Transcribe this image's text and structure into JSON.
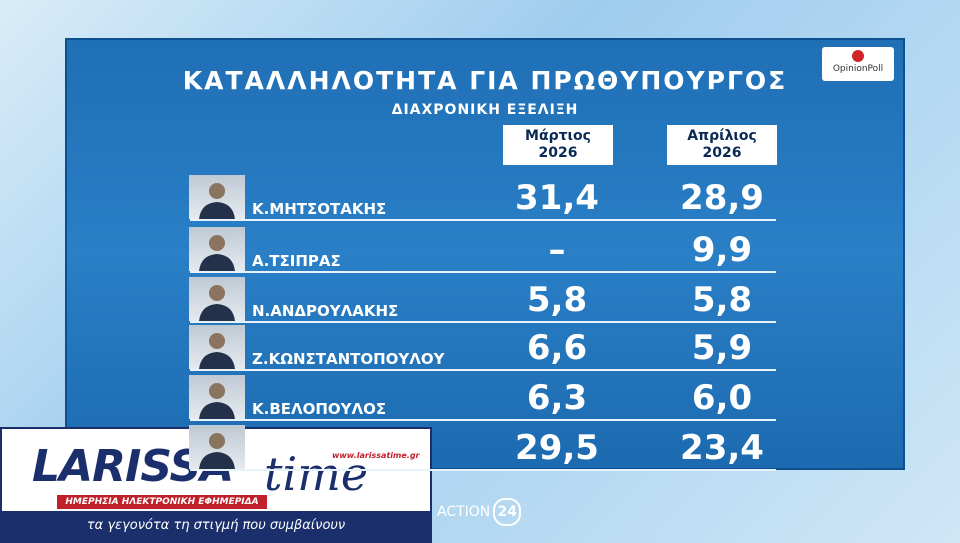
{
  "header": {
    "title": "ΚΑΤΑΛΛΗΛΟΤΗΤΑ ΓΙΑ ΠΡΩΘΥΠΟΥΡΓΟΣ",
    "subtitle": "ΔΙΑΧΡΟΝΙΚΗ ΕΞΕΛΙΞΗ",
    "pollster": "OpinionPoll"
  },
  "table": {
    "columns": [
      {
        "month": "Μάρτιος",
        "year": "2026"
      },
      {
        "month": "Απρίλιος",
        "year": "2026"
      }
    ],
    "rows": [
      {
        "name": "Κ.ΜΗΤΣΟΤΑΚΗΣ",
        "values": [
          "31,4",
          "28,9"
        ]
      },
      {
        "name": "Α.ΤΣΙΠΡΑΣ",
        "values": [
          "–",
          "9,9"
        ]
      },
      {
        "name": "Ν.ΑΝΔΡΟΥΛΑΚΗΣ",
        "values": [
          "5,8",
          "5,8"
        ]
      },
      {
        "name": "Ζ.ΚΩΝΣΤΑΝΤΟΠΟΥΛΟΥ",
        "values": [
          "6,6",
          "5,9"
        ]
      },
      {
        "name": "Κ.ΒΕΛΟΠΟΥΛΟΣ",
        "values": [
          "6,3",
          "6,0"
        ]
      },
      {
        "values": [
          "29,5",
          "23,4"
        ]
      }
    ]
  },
  "channel": {
    "name": "ACTION",
    "number": "24"
  },
  "logo": {
    "brand1": "LARISSA",
    "brand2": "time",
    "url": "www.larissatime.gr",
    "tagline": "ΗΜΕΡΗΣΙΑ ΗΛΕΚΤΡΟΝΙΚΗ ΕΦΗΜΕΡΙΔΑ",
    "slogan": "τα γεγονότα τη στιγμή που συμβαίνουν"
  }
}
